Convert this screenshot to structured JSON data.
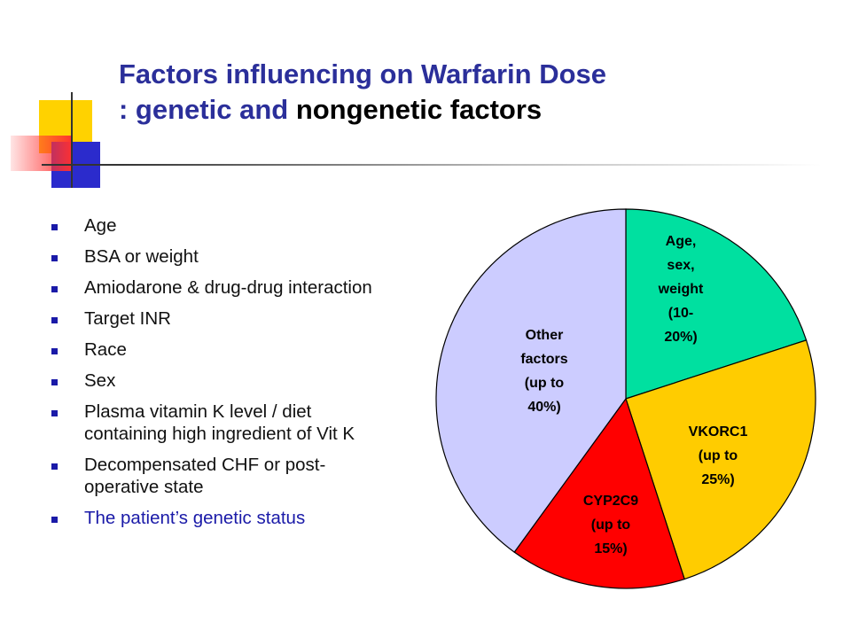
{
  "slide": {
    "title_part1": "Factors influencing on Warfarin Dose",
    "title_part2_prefix": ": genetic and ",
    "title_part2_black": "nongenetic factors"
  },
  "bullets": [
    {
      "lines": [
        "Age"
      ],
      "color": "#111111"
    },
    {
      "lines": [
        "BSA or weight"
      ],
      "color": "#111111"
    },
    {
      "lines": [
        "Amiodarone & drug-drug interaction"
      ],
      "color": "#111111"
    },
    {
      "lines": [
        "Target INR"
      ],
      "color": "#111111"
    },
    {
      "lines": [
        "Race"
      ],
      "color": "#111111"
    },
    {
      "lines": [
        "Sex"
      ],
      "color": "#111111"
    },
    {
      "lines": [
        "Plasma vitamin K level / diet",
        "containing high ingredient of Vit K"
      ],
      "color": "#111111"
    },
    {
      "lines": [
        "Decompensated CHF or post-",
        "operative state"
      ],
      "color": "#111111"
    },
    {
      "lines": [
        "The patient’s genetic status"
      ],
      "color": "#1a1aa8"
    }
  ],
  "chart_data": {
    "type": "pie",
    "title": "",
    "slices": [
      {
        "label_lines": [
          "Age,",
          "sex,",
          "weight",
          "(10-",
          "20%)"
        ],
        "value": 20,
        "color": "#00e0a0"
      },
      {
        "label_lines": [
          "VKORC1",
          "(up to",
          "25%)"
        ],
        "value": 25,
        "color": "#ffcc00"
      },
      {
        "label_lines": [
          "CYP2C9",
          "(up to",
          "15%)"
        ],
        "value": 15,
        "color": "#ff0000"
      },
      {
        "label_lines": [
          "Other",
          "factors",
          "(up to",
          "40%)"
        ],
        "value": 40,
        "color": "#ccccff"
      }
    ],
    "start_angle_deg": 0,
    "direction": "clockwise",
    "legend": "none"
  }
}
